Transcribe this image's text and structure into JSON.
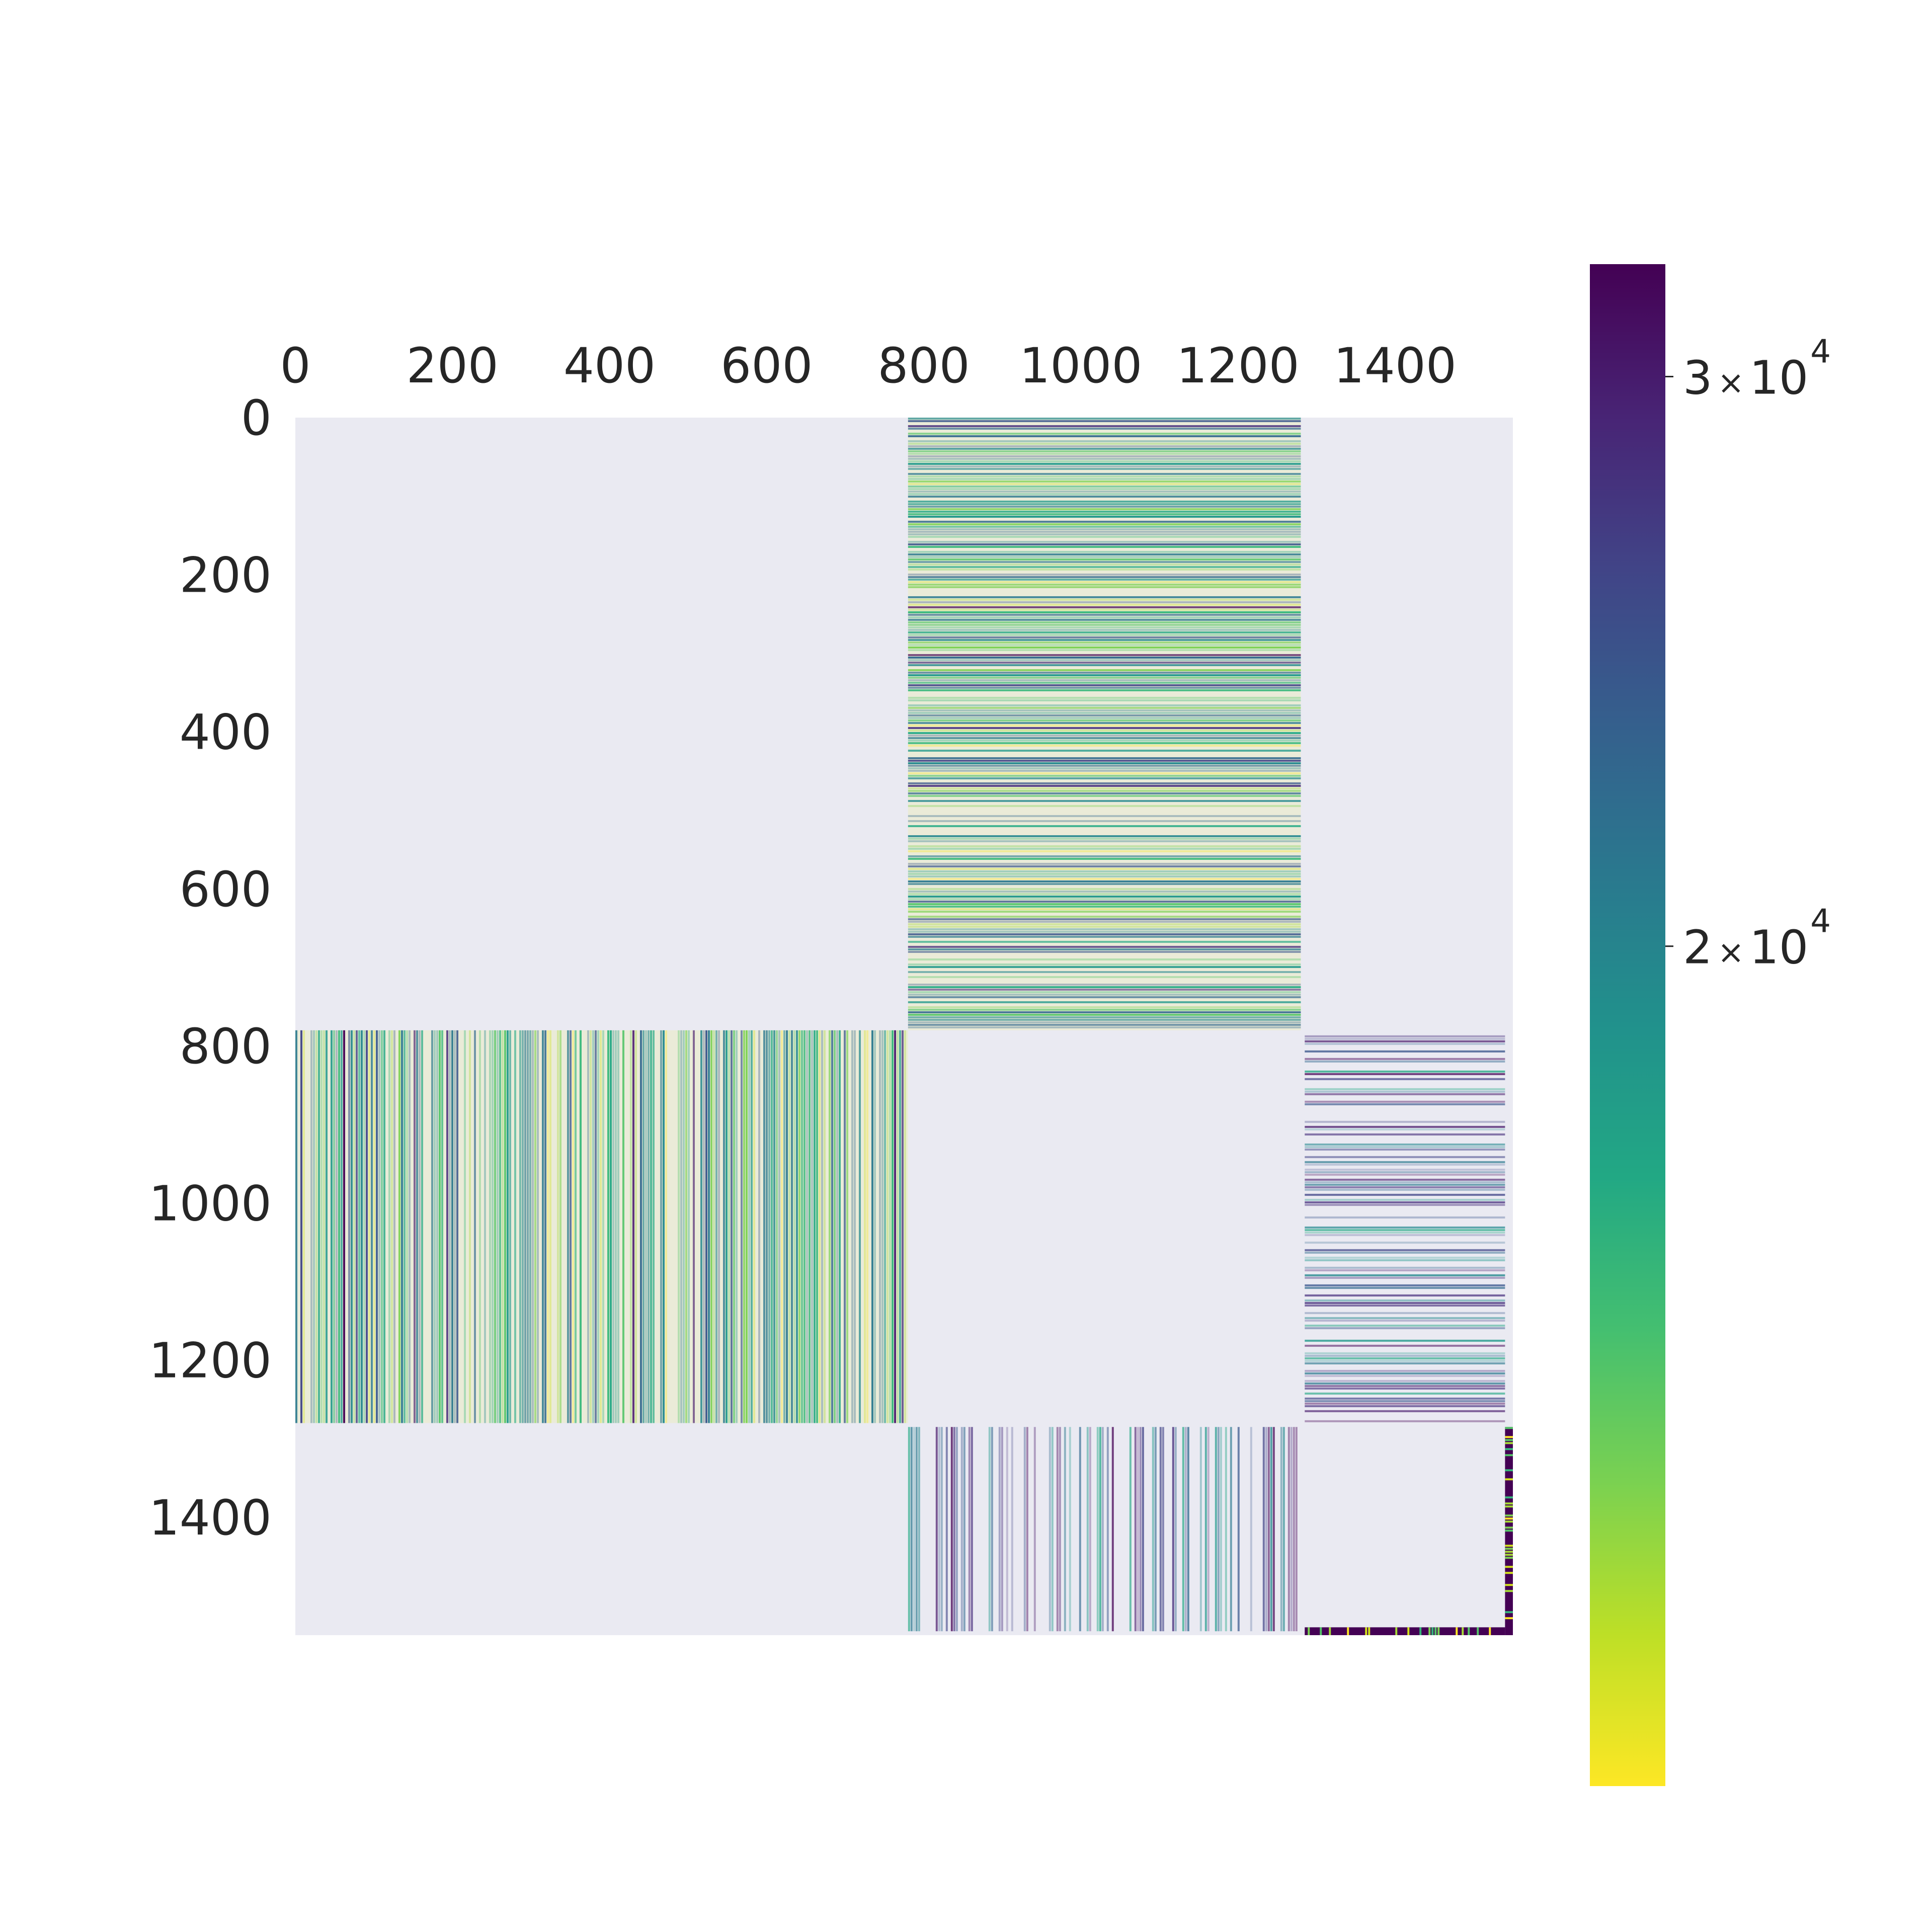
{
  "chart_data": {
    "type": "heatmap",
    "title": "",
    "xlabel": "",
    "ylabel": "",
    "xlim": [
      0,
      1550
    ],
    "ylim": [
      1550,
      0
    ],
    "x_ticks": [
      0,
      200,
      400,
      600,
      800,
      1000,
      1200,
      1400
    ],
    "y_ticks": [
      0,
      200,
      400,
      600,
      800,
      1000,
      1200,
      1400
    ],
    "x_tick_labels": [
      "0",
      "200",
      "400",
      "600",
      "800",
      "1000",
      "1200",
      "1400"
    ],
    "y_tick_labels": [
      "0",
      "200",
      "400",
      "600",
      "800",
      "1000",
      "1200",
      "1400"
    ],
    "x_axis_position": "top",
    "background_color": "#eaeaf2",
    "grid": false,
    "colormap": "viridis_r",
    "colorbar": {
      "range": [
        11000,
        32500
      ],
      "scale": "log",
      "placement": "right",
      "ticks": [
        {
          "value": 30000,
          "mantissa": "3",
          "times": "×",
          "base": "10",
          "exponent": "4"
        },
        {
          "value": 20000,
          "mantissa": "2",
          "times": "×",
          "base": "10",
          "exponent": "4"
        }
      ]
    },
    "blocks": [
      {
        "rows": [
          0,
          780
        ],
        "cols": [
          780,
          1280
        ],
        "pattern": "horizontal-bands",
        "intensity": "medium"
      },
      {
        "rows": [
          780,
          1280
        ],
        "cols": [
          0,
          780
        ],
        "pattern": "vertical-bands",
        "intensity": "medium"
      },
      {
        "rows": [
          780,
          1280
        ],
        "cols": [
          1285,
          1540
        ],
        "pattern": "horizontal-bands-sparse",
        "intensity": "high"
      },
      {
        "rows": [
          1285,
          1545
        ],
        "cols": [
          780,
          1280
        ],
        "pattern": "vertical-bands-sparse",
        "intensity": "high"
      },
      {
        "rows": [
          1285,
          1550
        ],
        "cols": [
          1540,
          1550
        ],
        "pattern": "edge-strip",
        "intensity": "max"
      },
      {
        "rows": [
          1540,
          1550
        ],
        "cols": [
          1285,
          1540
        ],
        "pattern": "edge-strip",
        "intensity": "max"
      }
    ]
  }
}
